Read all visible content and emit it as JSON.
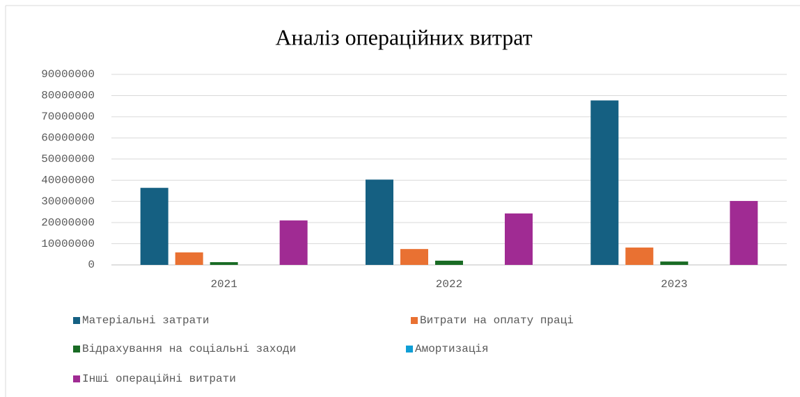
{
  "chart_data": {
    "type": "bar",
    "title": "Аналіз операційних витрат",
    "categories": [
      "2021",
      "2022",
      "2023"
    ],
    "series": [
      {
        "name": "Матеріальні затрати",
        "color": "#156082",
        "values": [
          36400000,
          40300000,
          77700000
        ]
      },
      {
        "name": "Витрати на оплату праці",
        "color": "#e97132",
        "values": [
          5900000,
          7500000,
          8200000
        ]
      },
      {
        "name": "Відрахування на соціальні заходи",
        "color": "#196b24",
        "values": [
          1300000,
          2000000,
          1600000
        ]
      },
      {
        "name": "Амортизація",
        "color": "#0f9ed5",
        "values": [
          0,
          0,
          0
        ]
      },
      {
        "name": "Інші операційні витрати",
        "color": "#a02b93",
        "values": [
          21000000,
          24300000,
          30200000
        ]
      }
    ],
    "ylim": [
      0,
      90000000
    ],
    "yticks": [
      0,
      10000000,
      20000000,
      30000000,
      40000000,
      50000000,
      60000000,
      70000000,
      80000000,
      90000000
    ],
    "grid": true
  }
}
